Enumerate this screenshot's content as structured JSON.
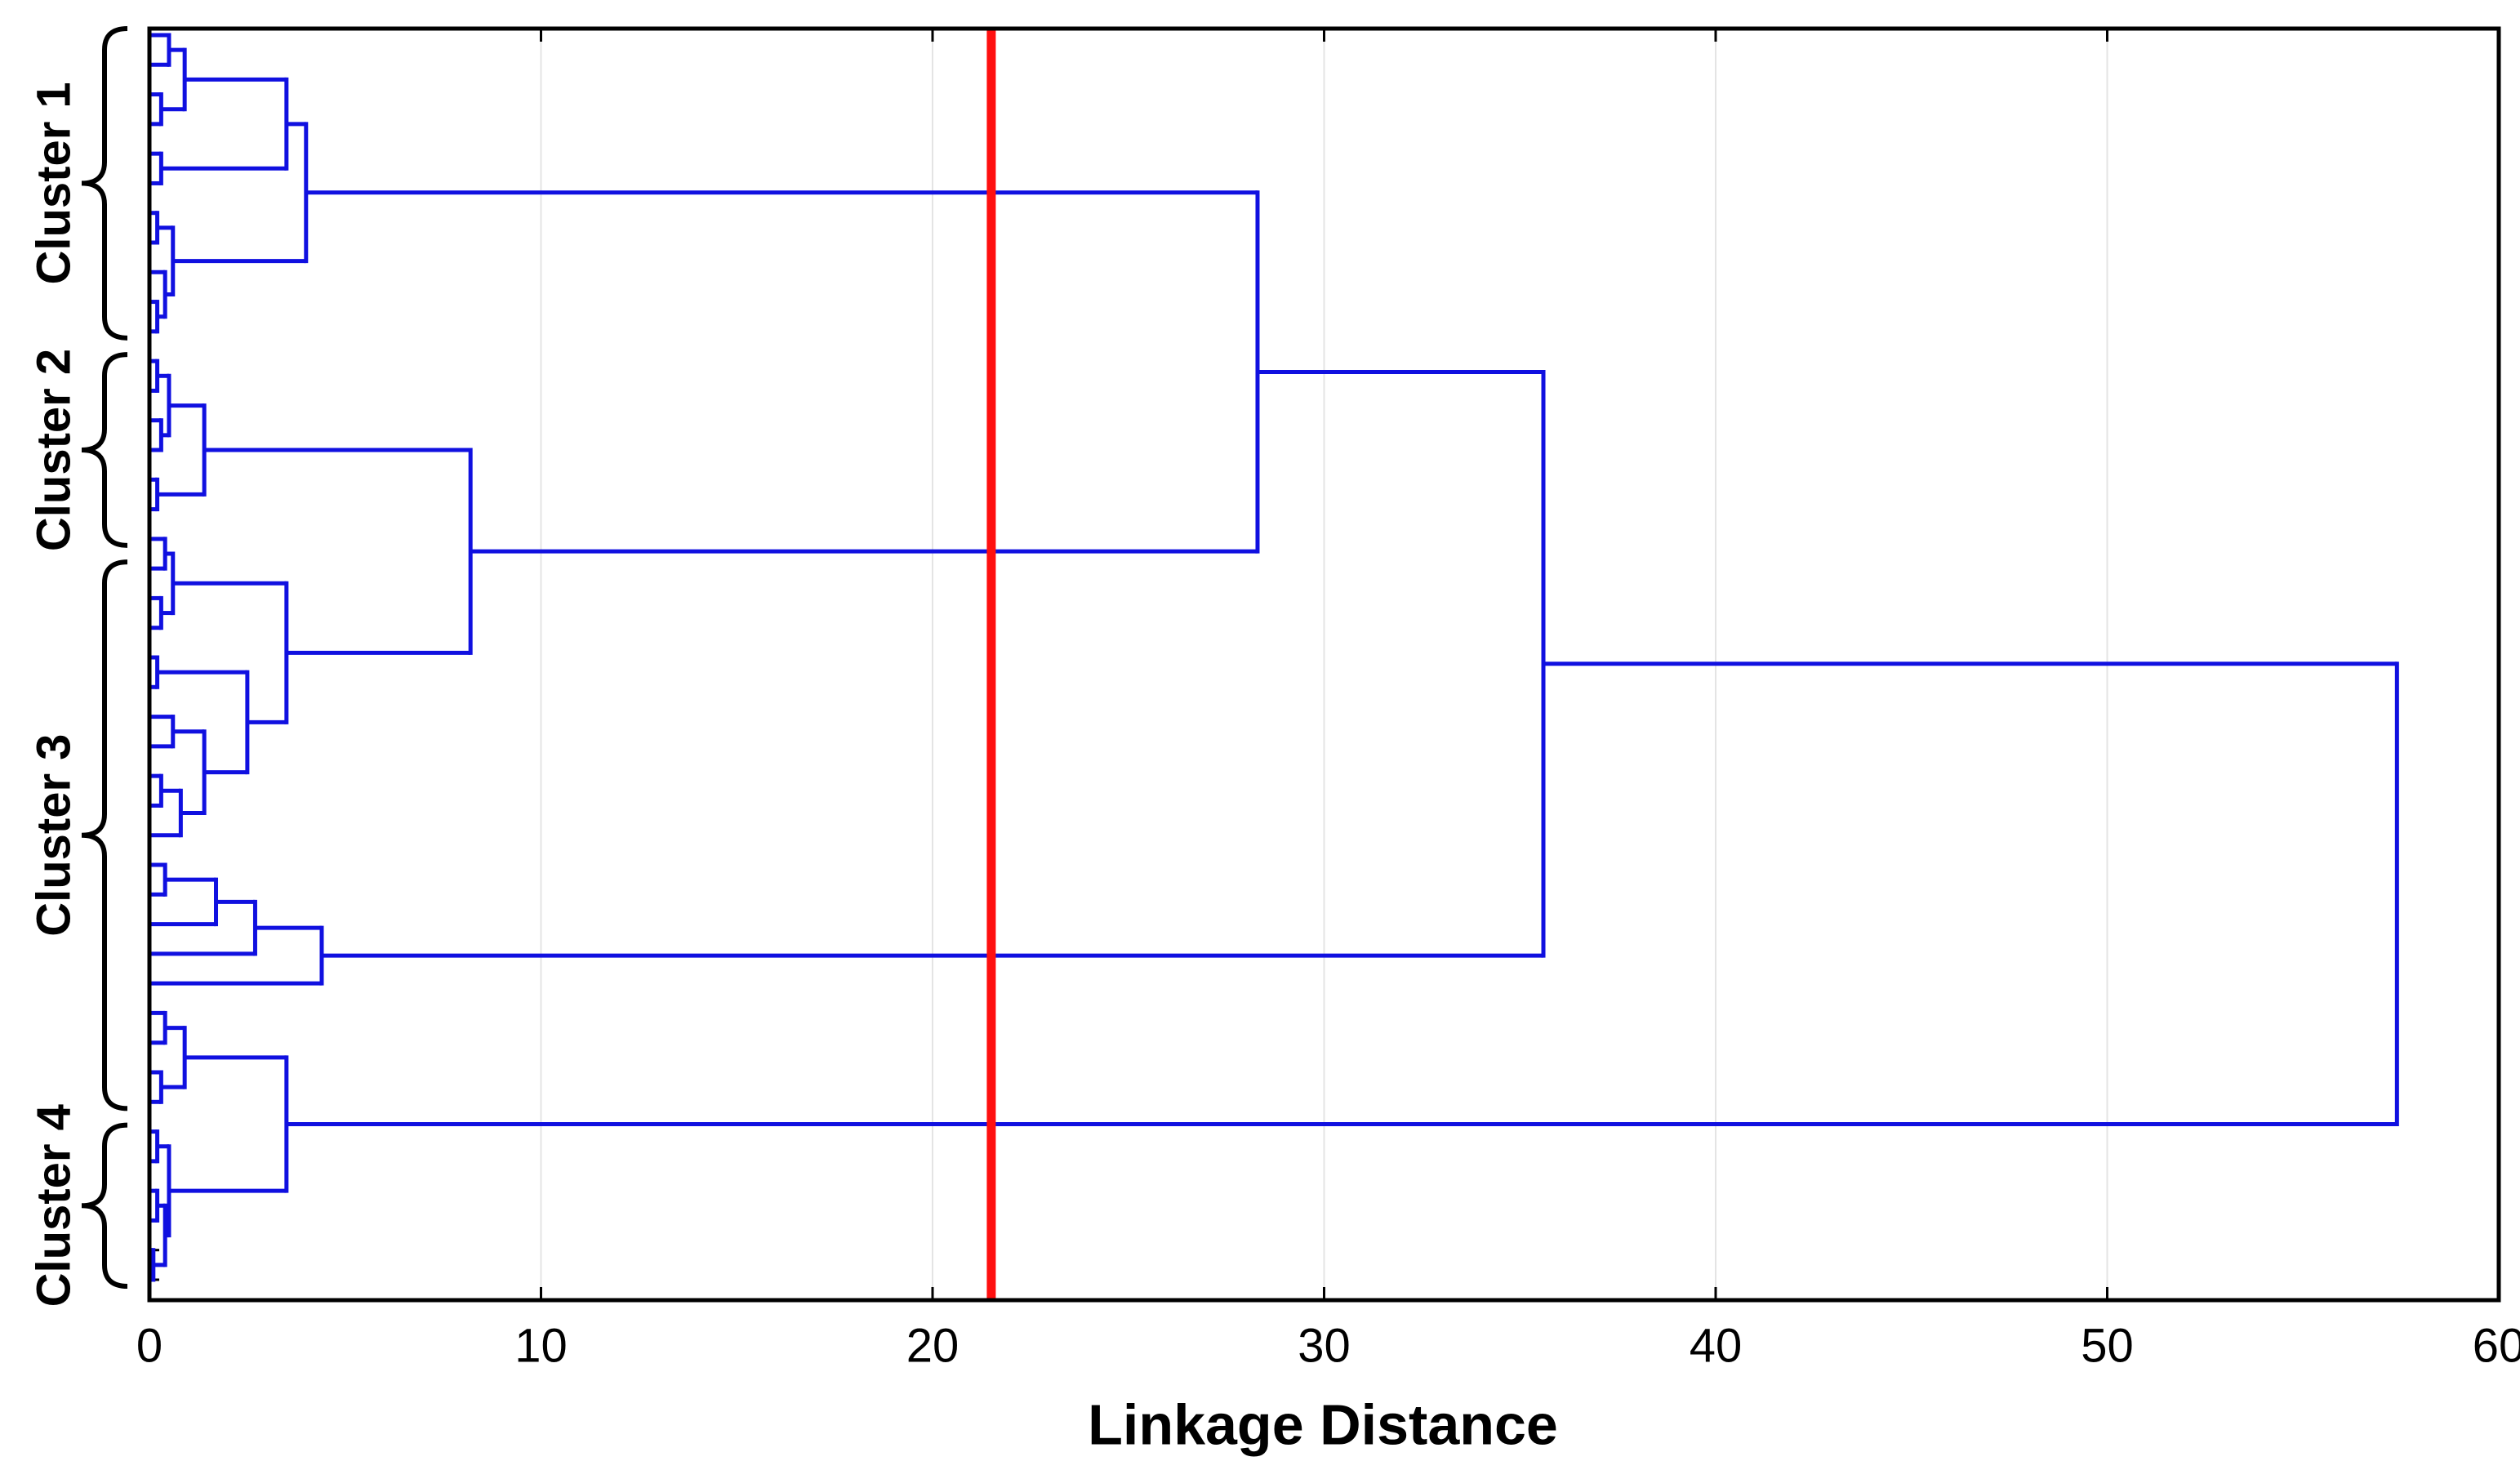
{
  "chart_data": {
    "type": "dendrogram",
    "xlabel": "Linkage Distance",
    "xlim": [
      0,
      60
    ],
    "xticks": [
      0,
      10,
      20,
      30,
      40,
      50,
      60
    ],
    "grid": true,
    "color": "#1010e0",
    "cut_line": {
      "value": 21.5,
      "color": "#ff1010"
    },
    "clusters": [
      {
        "label": "Cluster 1",
        "leaves": [
          0,
          10
        ]
      },
      {
        "label": "Cluster 2",
        "leaves": [
          11,
          17
        ]
      },
      {
        "label": "Cluster 3",
        "leaves": [
          18,
          36
        ]
      },
      {
        "label": "Cluster 4",
        "leaves": [
          37,
          42
        ]
      }
    ],
    "tree": {
      "height": 57.4,
      "children": [
        {
          "height": 35.6,
          "children": [
            {
              "height": 28.3,
              "children": [
                {
                  "height": 4.0,
                  "children": [
                    {
                      "height": 3.5,
                      "children": [
                        {
                          "height": 0.9,
                          "children": [
                            {
                              "height": 0.5,
                              "children": [
                                0,
                                0
                              ]
                            },
                            {
                              "height": 0.3,
                              "children": [
                                0,
                                0
                              ]
                            }
                          ]
                        },
                        {
                          "height": 0.3,
                          "children": [
                            0,
                            0
                          ]
                        }
                      ]
                    },
                    {
                      "height": 0.6,
                      "children": [
                        {
                          "height": 0.2,
                          "children": [
                            0,
                            0
                          ]
                        },
                        {
                          "height": 0.4,
                          "children": [
                            0,
                            {
                              "height": 0.2,
                              "children": [
                                0,
                                0
                              ]
                            }
                          ]
                        }
                      ]
                    }
                  ]
                },
                {
                  "height": 8.2,
                  "children": [
                    {
                      "height": 1.4,
                      "children": [
                        {
                          "height": 0.5,
                          "children": [
                            {
                              "height": 0.2,
                              "children": [
                                0,
                                0
                              ]
                            },
                            {
                              "height": 0.3,
                              "children": [
                                0,
                                0
                              ]
                            }
                          ]
                        },
                        {
                          "height": 0.2,
                          "children": [
                            0,
                            0
                          ]
                        }
                      ]
                    },
                    {
                      "height": 3.5,
                      "children": [
                        {
                          "height": 0.6,
                          "children": [
                            {
                              "height": 0.4,
                              "children": [
                                0,
                                0
                              ]
                            },
                            {
                              "height": 0.3,
                              "children": [
                                0,
                                0
                              ]
                            }
                          ]
                        },
                        {
                          "height": 2.5,
                          "children": [
                            {
                              "height": 0.2,
                              "children": [
                                0,
                                0
                              ]
                            },
                            {
                              "height": 1.4,
                              "children": [
                                {
                                  "height": 0.6,
                                  "children": [
                                    0,
                                    0
                                  ]
                                },
                                {
                                  "height": 0.8,
                                  "children": [
                                    {
                                      "height": 0.3,
                                      "children": [
                                        0,
                                        0
                                      ]
                                    },
                                    0
                                  ]
                                }
                              ]
                            }
                          ]
                        }
                      ]
                    }
                  ]
                }
              ]
            },
            {
              "height": 4.4,
              "children": [
                {
                  "height": 2.7,
                  "children": [
                    {
                      "height": 1.7,
                      "children": [
                        {
                          "height": 0.4,
                          "children": [
                            0,
                            0
                          ]
                        },
                        0
                      ]
                    },
                    0
                  ]
                },
                0
              ]
            }
          ]
        },
        {
          "height": 3.5,
          "children": [
            {
              "height": 0.9,
              "children": [
                {
                  "height": 0.4,
                  "children": [
                    0,
                    0
                  ]
                },
                {
                  "height": 0.3,
                  "children": [
                    0,
                    0
                  ]
                }
              ]
            },
            {
              "height": 0.5,
              "children": [
                {
                  "height": 0.2,
                  "children": [
                    0,
                    0
                  ]
                },
                {
                  "height": 0.4,
                  "children": [
                    {
                      "height": 0.2,
                      "children": [
                        0,
                        0
                      ]
                    },
                    {
                      "height": 0.1,
                      "children": [
                        0,
                        0
                      ]
                    }
                  ]
                }
              ]
            }
          ]
        }
      ]
    }
  }
}
